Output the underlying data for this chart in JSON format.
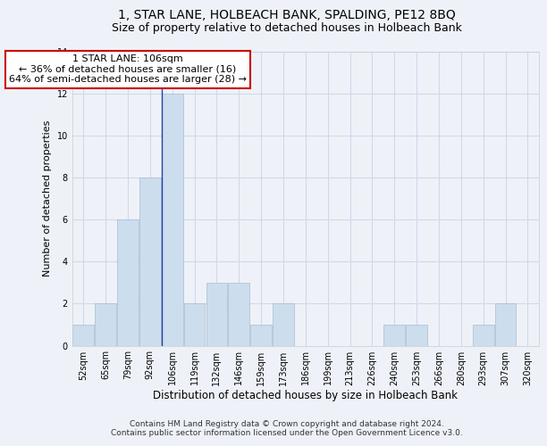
{
  "title": "1, STAR LANE, HOLBEACH BANK, SPALDING, PE12 8BQ",
  "subtitle": "Size of property relative to detached houses in Holbeach Bank",
  "xlabel": "Distribution of detached houses by size in Holbeach Bank",
  "ylabel": "Number of detached properties",
  "categories": [
    "52sqm",
    "65sqm",
    "79sqm",
    "92sqm",
    "106sqm",
    "119sqm",
    "132sqm",
    "146sqm",
    "159sqm",
    "173sqm",
    "186sqm",
    "199sqm",
    "213sqm",
    "226sqm",
    "240sqm",
    "253sqm",
    "266sqm",
    "280sqm",
    "293sqm",
    "307sqm",
    "320sqm"
  ],
  "values": [
    1,
    2,
    6,
    8,
    12,
    2,
    3,
    3,
    1,
    2,
    0,
    0,
    0,
    0,
    1,
    1,
    0,
    0,
    1,
    2,
    0
  ],
  "bar_color": "#ccdded",
  "bar_edge_color": "#aabccc",
  "highlight_bar_index": 4,
  "highlight_line_color": "#2244aa",
  "annotation_line1": "1 STAR LANE: 106sqm",
  "annotation_line2": "← 36% of detached houses are smaller (16)",
  "annotation_line3": "64% of semi-detached houses are larger (28) →",
  "annotation_box_color": "#ffffff",
  "annotation_box_edge_color": "#cc0000",
  "ylim": [
    0,
    14
  ],
  "yticks": [
    0,
    2,
    4,
    6,
    8,
    10,
    12,
    14
  ],
  "grid_color": "#d0d8ea",
  "background_color": "#eef2f8",
  "footer_line1": "Contains HM Land Registry data © Crown copyright and database right 2024.",
  "footer_line2": "Contains public sector information licensed under the Open Government Licence v3.0.",
  "title_fontsize": 10,
  "subtitle_fontsize": 9,
  "xlabel_fontsize": 8.5,
  "ylabel_fontsize": 8,
  "tick_fontsize": 7,
  "annotation_fontsize": 8,
  "footer_fontsize": 6.5
}
